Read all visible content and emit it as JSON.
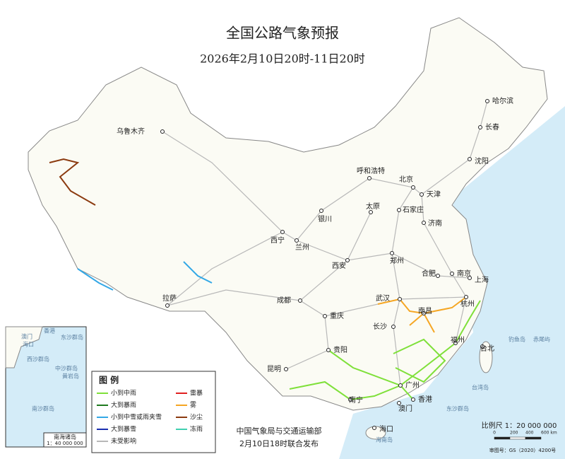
{
  "header": {
    "title": "全国公路气象预报",
    "subtitle": "2026年2月10日20时-11日20时"
  },
  "cities": [
    "乌鲁木齐",
    "哈尔滨",
    "长春",
    "沈阳",
    "呼和浩特",
    "北京",
    "天津",
    "石家庄",
    "太原",
    "银川",
    "济南",
    "西宁",
    "兰州",
    "郑州",
    "西安",
    "合肥",
    "南京",
    "上海",
    "拉萨",
    "成都",
    "武汉",
    "杭州",
    "南昌",
    "重庆",
    "长沙",
    "福州",
    "台北",
    "贵阳",
    "昆明",
    "广州",
    "南宁",
    "澳门",
    "香港",
    "海口"
  ],
  "islands": [
    "钓鱼岛",
    "赤尾屿",
    "台湾岛",
    "东沙群岛",
    "海南岛"
  ],
  "legend": {
    "title": "图 例",
    "items": [
      {
        "label": "小到中雨",
        "color": "#7fe03a"
      },
      {
        "label": "雷暴",
        "color": "#e02020"
      },
      {
        "label": "大到暴雨",
        "color": "#1f7a1f"
      },
      {
        "label": "雾",
        "color": "#f5a623"
      },
      {
        "label": "小到中雪或雨夹雪",
        "color": "#33a8e6"
      },
      {
        "label": "沙尘",
        "color": "#8b3a0f"
      },
      {
        "label": "大到暴雪",
        "color": "#1a2fb0"
      },
      {
        "label": "冻雨",
        "color": "#40d0b0"
      },
      {
        "label": "未受影响",
        "color": "#b8b8b8"
      }
    ]
  },
  "inset": {
    "title": "南海诸岛",
    "scale": "1：40 000 000",
    "labels": [
      "香港",
      "澳门",
      "东沙群岛",
      "海口",
      "西沙群岛",
      "中沙群岛",
      "黄岩岛",
      "南沙群岛"
    ]
  },
  "footer": {
    "issuer": "中国气象局与交通运输部",
    "issued": "2月10日18时联合发布",
    "scale": "比例尺 1：20 000 000",
    "scale_ticks": [
      "0",
      "200",
      "400",
      "600 km"
    ],
    "approval": "审图号：GS（2020）4200号"
  }
}
